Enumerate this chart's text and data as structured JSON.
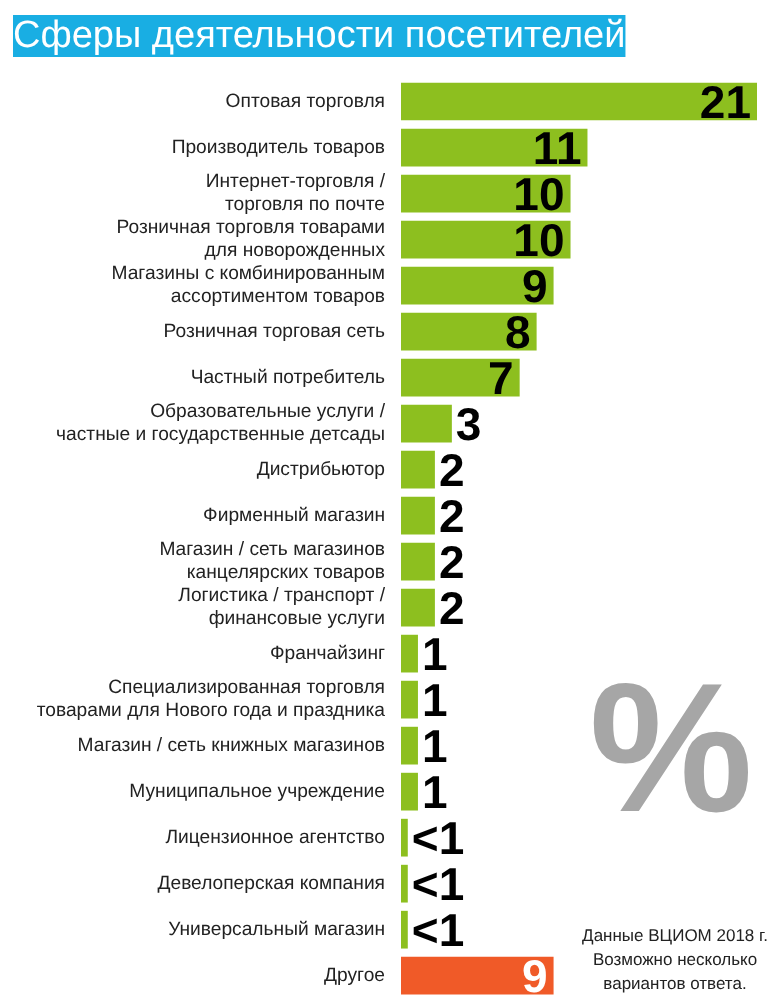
{
  "chart_data": {
    "type": "bar",
    "orientation": "horizontal",
    "title": "Сферы деятельности посетителей",
    "categories": [
      "Оптовая торговля",
      "Производитель товаров",
      "Интернет-торговля /\nторговля по почте",
      "Розничная торговля товарами\nдля новорожденных",
      "Магазины с комбинированным\nассортиментом товаров",
      "Розничная торговая сеть",
      "Частный потребитель",
      "Образовательные услуги /\nчастные и государственные детсады",
      "Дистрибьютор",
      "Фирменный магазин",
      "Магазин / сеть магазинов\nканцелярских товаров",
      "Логистика / транспорт /\nфинансовые услуги",
      "Франчайзинг",
      "Специализированная торговля\nтоварами для Нового года и праздника",
      "Магазин / сеть книжных магазинов",
      "Муниципальное учреждение",
      "Лицензионное агентство",
      "Девелоперская компания",
      "Универсальный магазин",
      "Другое"
    ],
    "values": [
      21,
      11,
      10,
      10,
      9,
      8,
      7,
      3,
      2,
      2,
      2,
      2,
      1,
      1,
      1,
      1,
      0.4,
      0.4,
      0.4,
      9
    ],
    "value_labels": [
      "21",
      "11",
      "10",
      "10",
      "9",
      "8",
      "7",
      "3",
      "2",
      "2",
      "2",
      "2",
      "1",
      "1",
      "1",
      "1",
      "<1",
      "<1",
      "<1",
      "9"
    ],
    "colors": [
      "#8dbf1f",
      "#8dbf1f",
      "#8dbf1f",
      "#8dbf1f",
      "#8dbf1f",
      "#8dbf1f",
      "#8dbf1f",
      "#8dbf1f",
      "#8dbf1f",
      "#8dbf1f",
      "#8dbf1f",
      "#8dbf1f",
      "#8dbf1f",
      "#8dbf1f",
      "#8dbf1f",
      "#8dbf1f",
      "#8dbf1f",
      "#8dbf1f",
      "#8dbf1f",
      "#f05a28"
    ],
    "annotations": [
      "%",
      "Данные ВЦИОМ 2018 г.\nВозможно несколько\nвариантов ответа."
    ]
  }
}
